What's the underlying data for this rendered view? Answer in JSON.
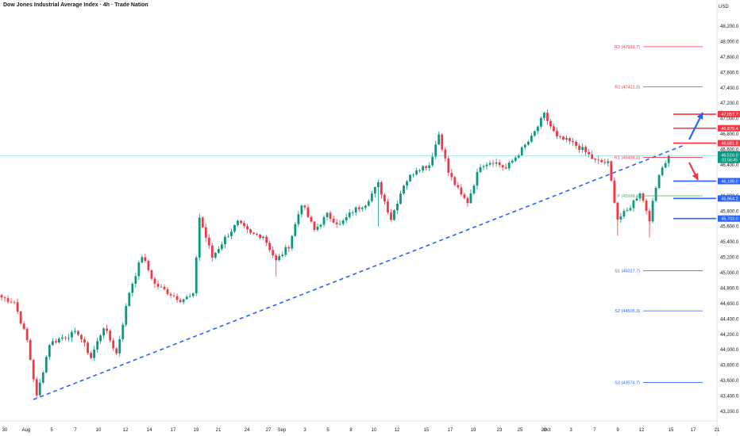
{
  "header": {
    "title": "Dow Jones Industrial Average Index · 4h · Trade Nation",
    "currency": "USD"
  },
  "colors": {
    "up": "#089981",
    "down": "#f23645",
    "trend": "#2962ff",
    "pivot_red": "#f23645",
    "pivot_blue": "#2962ff",
    "pivot_green": "#4caf50",
    "axis_text": "#131722",
    "current_line": "#26c6da"
  },
  "chart_data": {
    "type": "candlestick",
    "title": "Dow Jones Industrial Average Index · 4h · Trade Nation",
    "ylim": [
      43200,
      48200
    ],
    "y_ticks": [
      "43,200.0",
      "43,400.0",
      "43,600.0",
      "43,800.0",
      "44,000.0",
      "44,200.0",
      "44,400.0",
      "44,600.0",
      "44,800.0",
      "45,000.0",
      "45,200.0",
      "45,400.0",
      "45,600.0",
      "45,800.0",
      "46,000.0",
      "46,200.0",
      "46,400.0",
      "46,600.0",
      "46,800.0",
      "47,000.0",
      "47,200.0",
      "47,400.0",
      "47,600.0",
      "47,800.0",
      "48,000.0",
      "48,200.0"
    ],
    "x_ticks": [
      "30",
      "Aug",
      "5",
      "7",
      "10",
      "12",
      "14",
      "17",
      "19",
      "21",
      "24",
      "27",
      "Sep",
      "3",
      "5",
      "8",
      "10",
      "12",
      "15",
      "17",
      "19",
      "23",
      "25",
      "28",
      "Oct",
      "3",
      "7",
      "9",
      "12",
      "15",
      "17",
      "21"
    ],
    "waypoints": [
      [
        0,
        44680
      ],
      [
        4,
        44620
      ],
      [
        8,
        44120
      ],
      [
        11,
        43390
      ],
      [
        15,
        44080
      ],
      [
        20,
        44180
      ],
      [
        24,
        44220
      ],
      [
        28,
        43900
      ],
      [
        32,
        44300
      ],
      [
        36,
        43950
      ],
      [
        40,
        44750
      ],
      [
        44,
        45220
      ],
      [
        48,
        44850
      ],
      [
        52,
        44750
      ],
      [
        56,
        44650
      ],
      [
        60,
        44700
      ],
      [
        62,
        45720
      ],
      [
        66,
        45200
      ],
      [
        70,
        45450
      ],
      [
        74,
        45650
      ],
      [
        78,
        45500
      ],
      [
        82,
        45480
      ],
      [
        86,
        45150
      ],
      [
        90,
        45350
      ],
      [
        94,
        45900
      ],
      [
        98,
        45550
      ],
      [
        102,
        45750
      ],
      [
        106,
        45620
      ],
      [
        110,
        45800
      ],
      [
        114,
        45900
      ],
      [
        118,
        46150
      ],
      [
        122,
        45700
      ],
      [
        126,
        46150
      ],
      [
        130,
        46350
      ],
      [
        134,
        46400
      ],
      [
        137,
        46800
      ],
      [
        140,
        46300
      ],
      [
        144,
        46000
      ],
      [
        146,
        45920
      ],
      [
        150,
        46400
      ],
      [
        154,
        46450
      ],
      [
        158,
        46350
      ],
      [
        162,
        46550
      ],
      [
        166,
        46750
      ],
      [
        170,
        47050
      ],
      [
        174,
        46750
      ],
      [
        178,
        46700
      ],
      [
        182,
        46600
      ],
      [
        186,
        46450
      ],
      [
        190,
        46420
      ],
      [
        193,
        45700
      ],
      [
        196,
        45800
      ],
      [
        200,
        46050
      ],
      [
        203,
        45700
      ],
      [
        206,
        46300
      ],
      [
        209,
        46516
      ]
    ],
    "wick_spikes": [
      [
        193,
        45480
      ],
      [
        203,
        45460
      ],
      [
        118,
        45600
      ],
      [
        86,
        44950
      ]
    ],
    "trendline": {
      "from": [
        "Aug 1",
        43330
      ],
      "to": [
        "Oct 14",
        46800
      ],
      "style": "dashed"
    },
    "pivot_levels": [
      {
        "label": "R3 (47933.7)",
        "value": 47933.7,
        "color": "red"
      },
      {
        "label": "R2 (47411.3)",
        "value": 47411.3,
        "color": "red"
      },
      {
        "label": "R1 (46498.0)",
        "value": 46498.0,
        "color": "red"
      },
      {
        "label": "P (45998.3)",
        "value": 45998.3,
        "color": "green"
      },
      {
        "label": "S1 (45027.7)",
        "value": 45027.7,
        "color": "blue"
      },
      {
        "label": "S2 (44505.3)",
        "value": 44505.3,
        "color": "blue"
      },
      {
        "label": "S3 (43574.7)",
        "value": 43574.7,
        "color": "blue"
      }
    ],
    "price_levels": [
      {
        "label": "47,057.7",
        "value": 47057.7,
        "color": "red"
      },
      {
        "label": "46,875.4",
        "value": 46875.4,
        "color": "red"
      },
      {
        "label": "46,681.8",
        "value": 46681.8,
        "color": "red"
      },
      {
        "label": "46,189.0",
        "value": 46189.0,
        "color": "blue"
      },
      {
        "label": "45,964.2",
        "value": 45964.2,
        "color": "blue"
      },
      {
        "label": "45,703.0",
        "value": 45703.0,
        "color": "blue"
      }
    ],
    "current_price": {
      "label": "46,516.0",
      "countdown": "01:56:45",
      "value": 46516.0
    }
  }
}
